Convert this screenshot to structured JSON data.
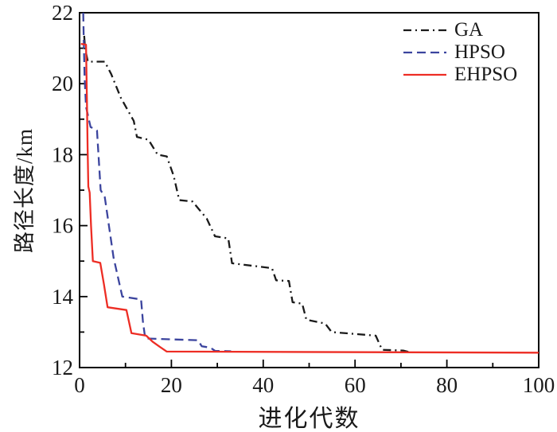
{
  "figure": {
    "background": "#ffffff",
    "axis_color": "#000000",
    "text_color": "#1a1a1a"
  },
  "chart_data": {
    "type": "line",
    "title": "",
    "xlabel": "进化代数",
    "ylabel": "路径长度/km",
    "xlim": [
      0,
      100
    ],
    "ylim": [
      12,
      22
    ],
    "x_major_ticks": [
      0,
      20,
      40,
      60,
      80,
      100
    ],
    "x_minor_ticks": [
      10,
      30,
      50,
      70,
      90
    ],
    "y_major_ticks": [
      22,
      20,
      18,
      16,
      14,
      12
    ],
    "y_minor_ticks": [
      21,
      19,
      17,
      15,
      13
    ],
    "grid": false,
    "legend_position": "top-right",
    "series": [
      {
        "name": "GA",
        "color": "#1a1a1a",
        "style": "dashdot",
        "points": [
          [
            1,
            21.35
          ],
          [
            1.2,
            21.0
          ],
          [
            1.8,
            20.62
          ],
          [
            5.5,
            20.62
          ],
          [
            6.9,
            20.27
          ],
          [
            9,
            19.6
          ],
          [
            11.8,
            18.95
          ],
          [
            12.5,
            18.5
          ],
          [
            15,
            18.42
          ],
          [
            17,
            18.0
          ],
          [
            19,
            17.95
          ],
          [
            20.5,
            17.4
          ],
          [
            21.7,
            16.72
          ],
          [
            24.6,
            16.68
          ],
          [
            27.7,
            16.2
          ],
          [
            29.5,
            15.7
          ],
          [
            32.4,
            15.64
          ],
          [
            33.2,
            14.94
          ],
          [
            41.9,
            14.8
          ],
          [
            42.8,
            14.46
          ],
          [
            45.6,
            14.44
          ],
          [
            46.4,
            13.84
          ],
          [
            48.5,
            13.8
          ],
          [
            49.4,
            13.35
          ],
          [
            53.5,
            13.24
          ],
          [
            54.9,
            13.0
          ],
          [
            64.5,
            12.9
          ],
          [
            65.9,
            12.5
          ],
          [
            70.5,
            12.48
          ],
          [
            72,
            12.43
          ]
        ]
      },
      {
        "name": "HPSO",
        "color": "#3b449e",
        "style": "dashed",
        "points": [
          [
            0.8,
            22.0
          ],
          [
            0.9,
            21.3
          ],
          [
            1.1,
            20.2
          ],
          [
            1.4,
            19.35
          ],
          [
            2.4,
            18.78
          ],
          [
            3.8,
            18.68
          ],
          [
            4.6,
            17.0
          ],
          [
            5.5,
            16.8
          ],
          [
            7.4,
            15.1
          ],
          [
            9.3,
            14.0
          ],
          [
            13.4,
            13.92
          ],
          [
            13.8,
            13.3
          ],
          [
            14.3,
            12.82
          ],
          [
            25.8,
            12.77
          ],
          [
            26.6,
            12.6
          ],
          [
            28.5,
            12.56
          ],
          [
            29.5,
            12.47
          ],
          [
            33,
            12.46
          ]
        ]
      },
      {
        "name": "EHPSO",
        "color": "#ed2d24",
        "style": "solid",
        "points": [
          [
            0.3,
            21.12
          ],
          [
            1.4,
            21.1
          ],
          [
            1.6,
            19.6
          ],
          [
            1.75,
            18.2
          ],
          [
            1.9,
            17.1
          ],
          [
            2.2,
            16.93
          ],
          [
            2.5,
            16.0
          ],
          [
            2.9,
            15.0
          ],
          [
            4.5,
            14.95
          ],
          [
            5.3,
            14.35
          ],
          [
            6.1,
            13.7
          ],
          [
            10.2,
            13.62
          ],
          [
            11.3,
            12.97
          ],
          [
            14.5,
            12.9
          ],
          [
            15.9,
            12.73
          ],
          [
            17.5,
            12.58
          ],
          [
            19,
            12.45
          ],
          [
            100,
            12.42
          ]
        ]
      }
    ]
  }
}
